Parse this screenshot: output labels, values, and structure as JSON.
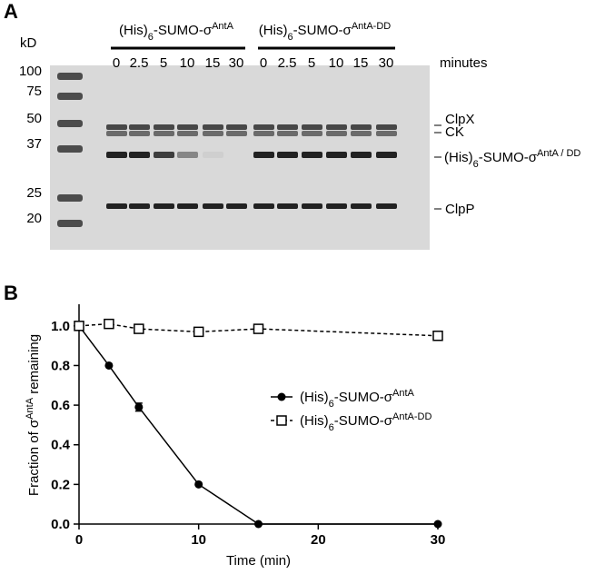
{
  "panel_a": {
    "label": "A",
    "unit": "kD",
    "ladder": [
      "100",
      "75",
      "50",
      "37",
      "25",
      "20"
    ],
    "groups": [
      [
        "(His)",
        "6",
        "-SUMO-σ",
        "AntA"
      ],
      [
        "(His)",
        "6",
        "-SUMO-σ",
        "AntA-DD"
      ]
    ],
    "lanes": [
      [
        "0",
        "2.5",
        "5",
        "10",
        "15",
        "30"
      ],
      [
        "0",
        "2.5",
        "5",
        "10",
        "15",
        "30"
      ]
    ],
    "lanes_unit": "minutes",
    "bands": {
      "clpx": "ClpX",
      "ck": "CK",
      "sigma": [
        "(His)",
        "6",
        "-SUMO-σ",
        "AntA / DD"
      ],
      "clpp": "ClpP"
    }
  },
  "chart_data": {
    "type": "line",
    "panel_label": "B",
    "x_label": "Time (min)",
    "y_label": [
      "Fraction of σ",
      "AntA",
      " remaining"
    ],
    "x": [
      0,
      2.5,
      5,
      10,
      15,
      30
    ],
    "series": [
      {
        "name": [
          "(His)",
          "6",
          "-SUMO-σ",
          "AntA"
        ],
        "color": "#000000",
        "marker": "circle",
        "dashed": false,
        "values": [
          1.0,
          0.8,
          0.59,
          0.2,
          0,
          0
        ],
        "errors": [
          null,
          null,
          0.02,
          null,
          null,
          null
        ]
      },
      {
        "name": [
          "(His)",
          "6",
          "-SUMO-σ",
          "AntA-DD"
        ],
        "color": "#000000",
        "marker": "square",
        "dashed": true,
        "values": [
          1.0,
          1.01,
          0.985,
          0.97,
          0.985,
          0.95
        ],
        "errors": [
          null,
          null,
          null,
          null,
          0.02,
          null
        ]
      }
    ],
    "xlim": [
      0,
      30
    ],
    "xticks": [
      0,
      10,
      20,
      30
    ],
    "ylim": [
      0,
      1.1
    ],
    "yticks": [
      {
        "value": 0,
        "label": "0.0"
      },
      0.2,
      0.4,
      0.6,
      0.8,
      {
        "value": 1,
        "label": "1.0"
      }
    ]
  }
}
